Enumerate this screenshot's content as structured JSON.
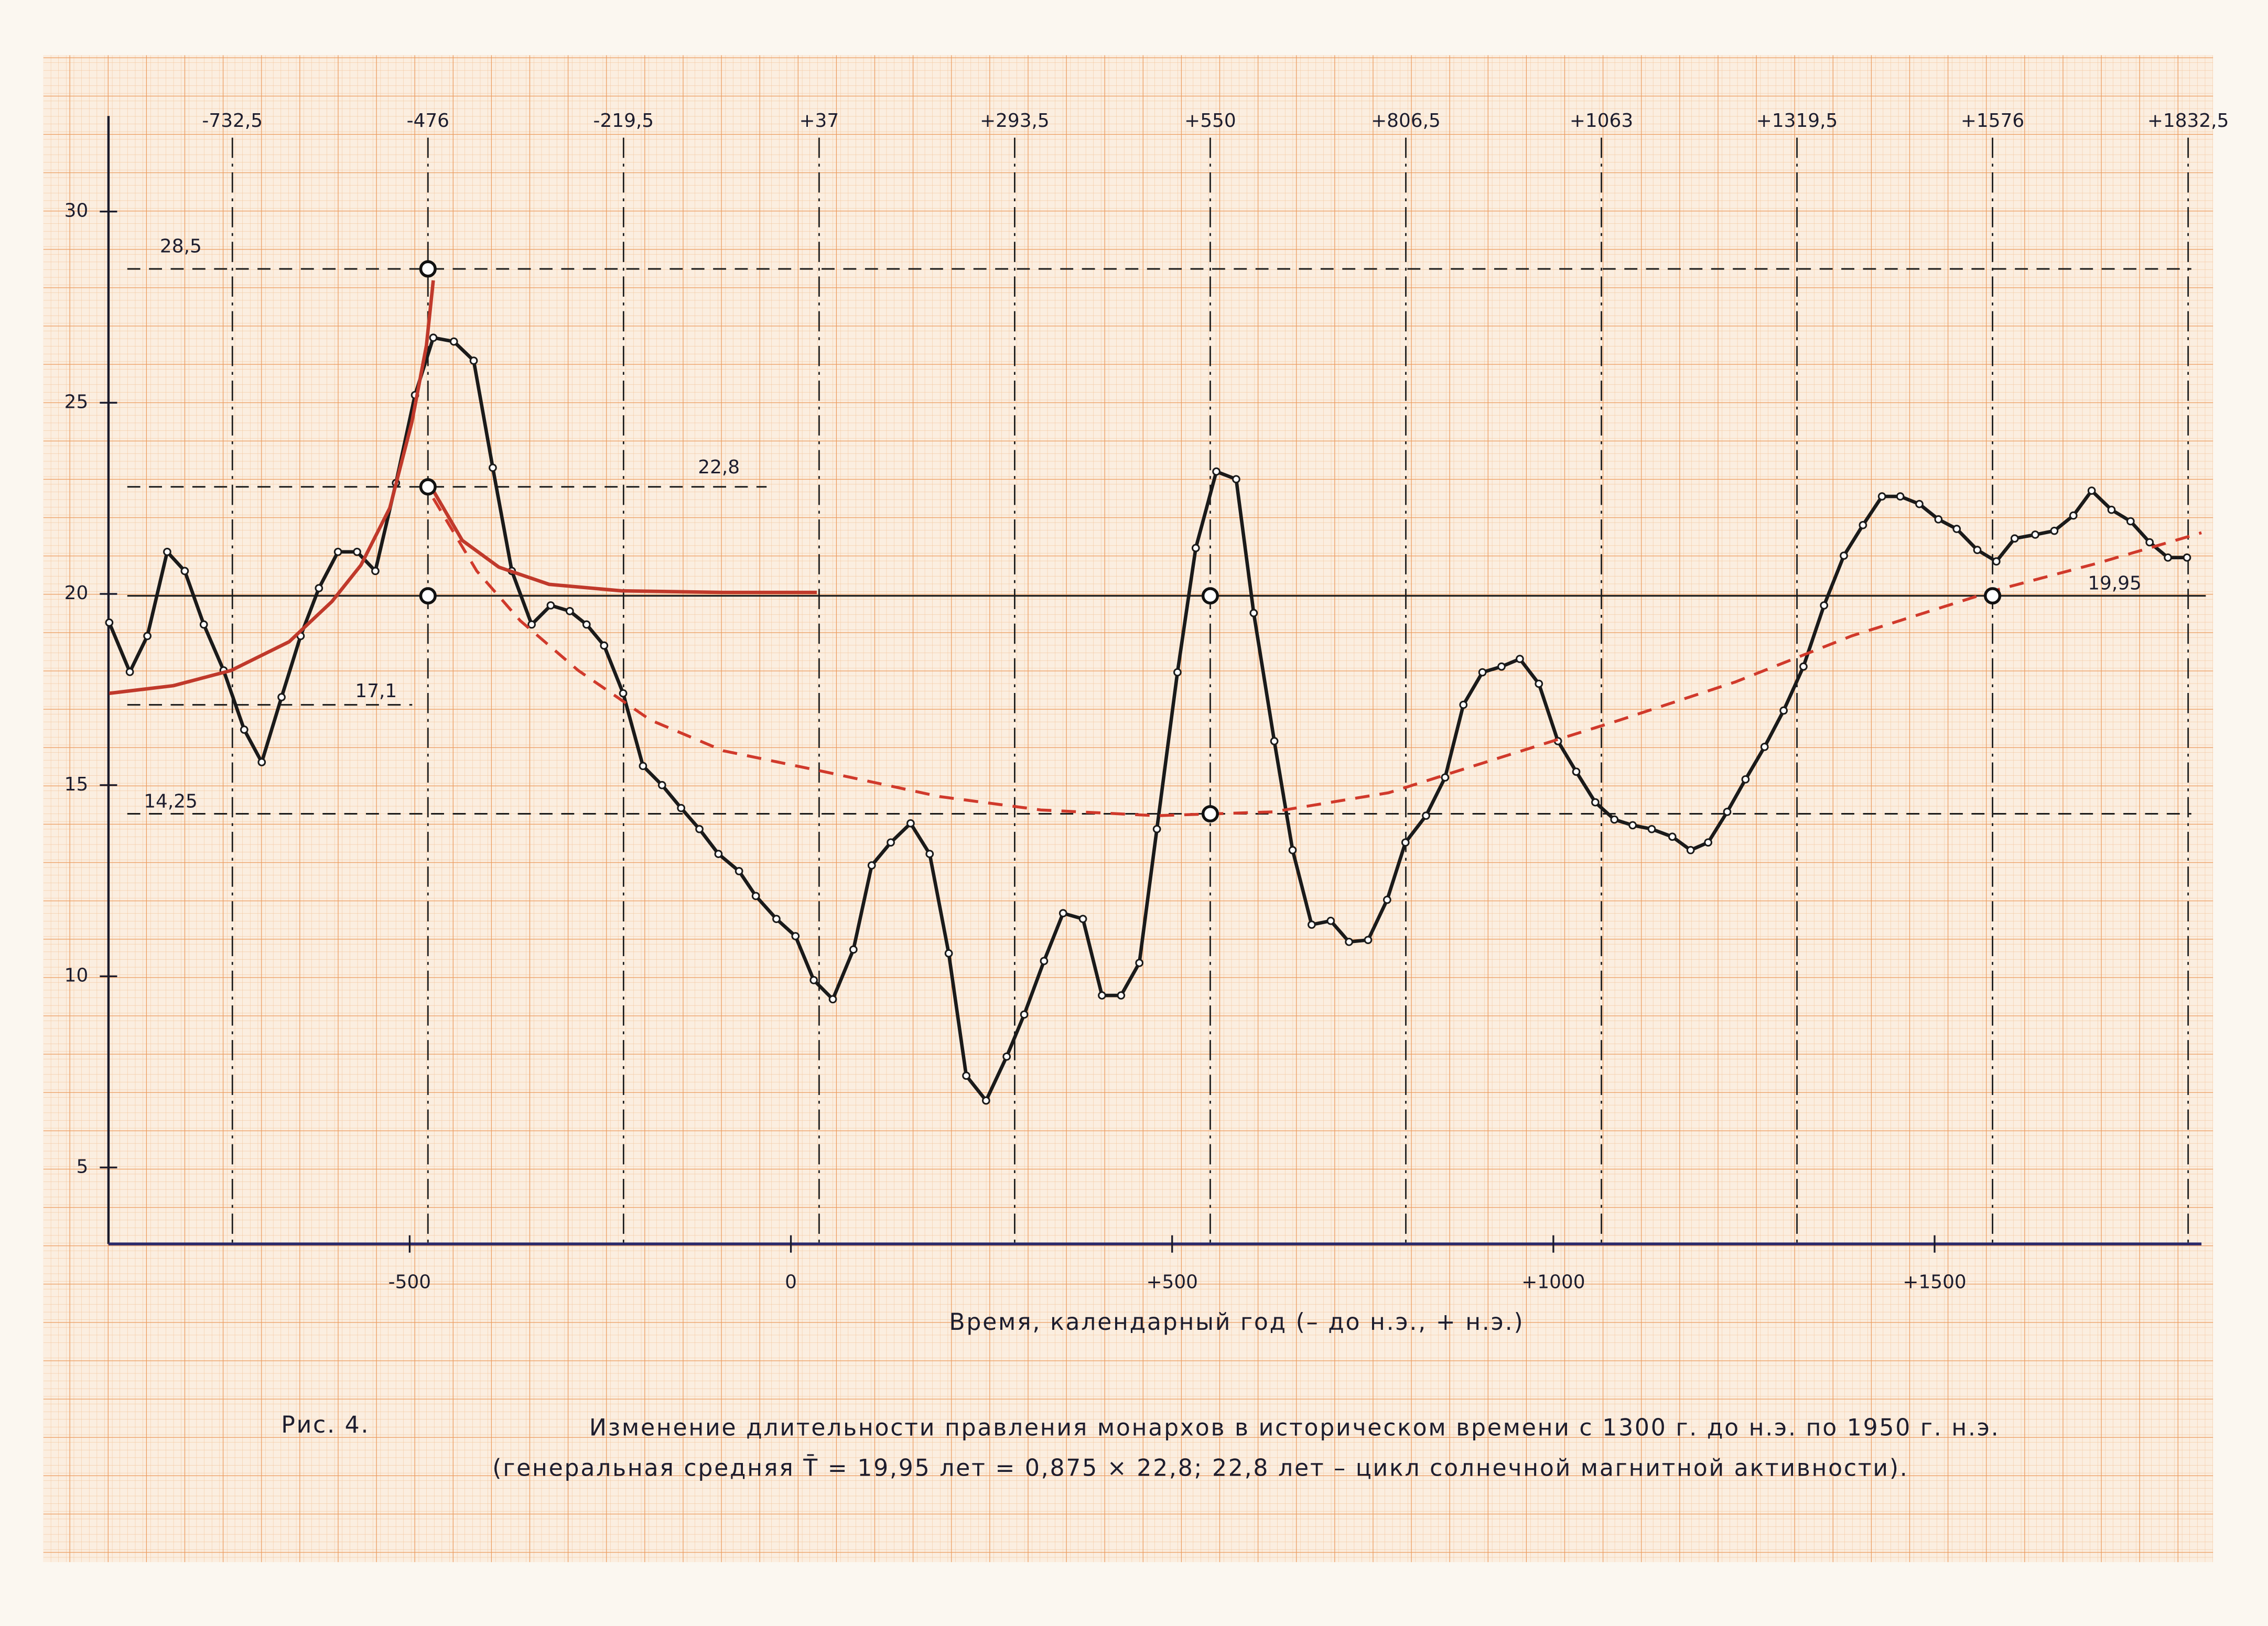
{
  "chart_data": {
    "type": "line",
    "x_label": "Время, календарный год (– до н.э., + н.э.)",
    "caption_label": "Рис. 4.",
    "caption_line1": "Изменение длительности правления монархов в историческом времени с 1300 г. до н.э. по 1950 г. н.э.",
    "caption_line2": "(генеральная средняя T̄ = 19,95 лет = 0,875 × 22,8;  22,8 лет – цикл солнечной магнитной активности).",
    "xlim": [
      -895,
      1850
    ],
    "ylim": [
      3,
      32.5
    ],
    "yticks": [
      5,
      10,
      15,
      20,
      25,
      30
    ],
    "xticks": [
      -500,
      0,
      {
        "value": 500,
        "label": "+500"
      },
      {
        "value": 1000,
        "label": "+1000"
      },
      {
        "value": 1500,
        "label": "+1500"
      }
    ],
    "x2ticks": [
      {
        "value": -732.5,
        "label": "-732,5"
      },
      {
        "value": -476,
        "label": "-476"
      },
      {
        "value": -219.5,
        "label": "-219,5"
      },
      {
        "value": 37,
        "label": "+37"
      },
      {
        "value": 293.5,
        "label": "+293,5"
      },
      {
        "value": 550,
        "label": "+550"
      },
      {
        "value": 806.5,
        "label": "+806,5"
      },
      {
        "value": 1063,
        "label": "+1063"
      },
      {
        "value": 1319.5,
        "label": "+1319,5"
      },
      {
        "value": 1576,
        "label": "+1576"
      },
      {
        "value": 1832.5,
        "label": "+1832,5"
      }
    ],
    "hlines": [
      {
        "value": 28.5,
        "label": "28,5"
      },
      {
        "value": 22.8,
        "label": "22,8"
      },
      {
        "value": 17.1,
        "label": "17,1"
      },
      {
        "value": 14.25,
        "label": "14,25"
      },
      {
        "value": 19.95,
        "label": "19,95"
      }
    ],
    "series": [
      {
        "color": "#1a1a1a",
        "style": "solid",
        "markers": true,
        "x": [
          -894,
          -867,
          -844,
          -818,
          -795,
          -770,
          -744,
          -717,
          -694,
          -668,
          -643,
          -619,
          -594,
          -569,
          -545,
          -518,
          -493,
          -469,
          -442,
          -416,
          -391,
          -366,
          -340,
          -315,
          -290,
          -268,
          -245,
          -220,
          -194,
          -169,
          -144,
          -120,
          -95,
          -68,
          -46,
          -19,
          6,
          30,
          55,
          82,
          106,
          131,
          157,
          182,
          207,
          230,
          256,
          283,
          306,
          332,
          357,
          383,
          408,
          433,
          457,
          480,
          507,
          531,
          558,
          584,
          607,
          634,
          658,
          683,
          708,
          732,
          757,
          782,
          806,
          833,
          858,
          882,
          907,
          932,
          956,
          981,
          1006,
          1030,
          1055,
          1080,
          1104,
          1129,
          1156,
          1180,
          1203,
          1228,
          1252,
          1277,
          1302,
          1328,
          1355,
          1381,
          1406,
          1431,
          1455,
          1480,
          1505,
          1529,
          1556,
          1581,
          1605,
          1632,
          1657,
          1682,
          1706,
          1732,
          1757,
          1782,
          1806,
          1831
        ],
        "values": [
          19.25,
          17.96,
          18.9,
          21.1,
          20.6,
          19.2,
          18.0,
          16.45,
          15.6,
          17.3,
          18.9,
          20.15,
          21.1,
          21.1,
          20.6,
          22.9,
          25.2,
          26.7,
          26.6,
          26.1,
          23.3,
          20.6,
          19.2,
          19.7,
          19.55,
          19.2,
          18.65,
          17.4,
          15.5,
          15.0,
          14.4,
          13.85,
          13.2,
          12.75,
          12.1,
          11.5,
          11.05,
          9.9,
          9.4,
          10.7,
          12.9,
          13.5,
          14.0,
          13.2,
          10.6,
          7.4,
          6.75,
          7.9,
          9.0,
          10.4,
          11.65,
          11.5,
          9.5,
          9.5,
          10.35,
          13.85,
          17.95,
          21.2,
          23.2,
          23.0,
          19.5,
          16.15,
          13.3,
          11.35,
          11.45,
          10.9,
          10.95,
          12.0,
          13.5,
          14.2,
          15.2,
          17.1,
          17.95,
          18.1,
          18.3,
          17.65,
          16.15,
          15.35,
          14.55,
          14.1,
          13.95,
          13.85,
          13.65,
          13.3,
          13.5,
          14.3,
          15.15,
          16.0,
          16.95,
          18.1,
          19.7,
          21.0,
          21.8,
          22.55,
          22.55,
          22.35,
          21.95,
          21.7,
          21.15,
          20.85,
          21.45,
          21.55,
          21.65,
          22.05,
          22.7,
          22.2,
          21.9,
          21.35,
          20.95,
          20.95
        ]
      },
      {
        "color": "#c0392b",
        "style": "solid",
        "markers": false,
        "x": [
          -894,
          -810,
          -734,
          -658,
          -602,
          -564,
          -526,
          -497,
          -478,
          -469
        ],
        "values": [
          17.4,
          17.6,
          18.0,
          18.75,
          19.8,
          20.75,
          22.25,
          24.5,
          26.5,
          28.2
        ]
      },
      {
        "color": "#c0392b",
        "style": "solid",
        "markers": false,
        "x": [
          -469,
          -431,
          -383,
          -317,
          -222,
          -89,
          34
        ],
        "values": [
          22.7,
          21.4,
          20.7,
          20.25,
          20.08,
          20.04,
          20.04
        ]
      },
      {
        "color": "#d0392b",
        "style": "dashed",
        "markers": false,
        "x": [
          -469,
          -412,
          -355,
          -279,
          -184,
          -89,
          44,
          195,
          328,
          480,
          632,
          784,
          935,
          1087,
          1239,
          1391,
          1581,
          1713,
          1850
        ],
        "values": [
          22.5,
          20.6,
          19.3,
          18.0,
          16.7,
          15.9,
          15.35,
          14.7,
          14.35,
          14.2,
          14.3,
          14.8,
          15.75,
          16.7,
          17.7,
          18.9,
          20.1,
          20.8,
          21.6
        ]
      }
    ],
    "key_points": {
      "x": [
        -476,
        -476,
        -476,
        550,
        550,
        1576
      ],
      "values": [
        28.5,
        22.8,
        19.95,
        19.95,
        14.25,
        19.95
      ]
    }
  }
}
